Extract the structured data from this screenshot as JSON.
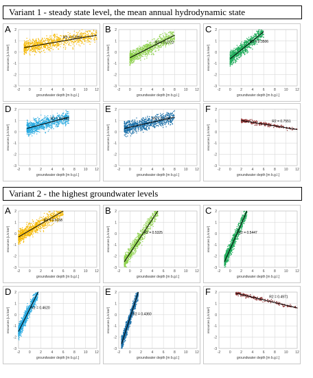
{
  "variants": [
    {
      "title": "Variant 1 - steady state level, the mean annual hydrodynamic state",
      "charts": [
        {
          "letter": "A",
          "r2": "R2 = 0.2352",
          "color": "#f5b800"
        },
        {
          "letter": "B",
          "r2": "R2 = 0.2772",
          "color": "#8fd14f"
        },
        {
          "letter": "C",
          "r2": "R2 = 0.3506",
          "color": "#1fab5a"
        },
        {
          "letter": "D",
          "r2": "R2 = 0.2962",
          "color": "#27a9e0"
        },
        {
          "letter": "E",
          "r2": "R2 = 0.1711",
          "color": "#1a6fa8"
        },
        {
          "letter": "F",
          "r2": "R2 = 0.7551",
          "color": "#8c2d2d"
        }
      ]
    },
    {
      "title": "Variant 2 - the highest groundwater levels",
      "charts": [
        {
          "letter": "A",
          "r2": "R2 = 0.5158",
          "color": "#f5b800"
        },
        {
          "letter": "B",
          "r2": "R2 = 0.5325",
          "color": "#8fd14f"
        },
        {
          "letter": "C",
          "r2": "R2 = 0.5447",
          "color": "#1fab5a"
        },
        {
          "letter": "D",
          "r2": "R2 = 0.4620",
          "color": "#27a9e0"
        },
        {
          "letter": "E",
          "r2": "R2 = 0.4360",
          "color": "#1a6fa8"
        },
        {
          "letter": "F",
          "r2": "R2 = 0.4971",
          "color": "#8c2d2d"
        }
      ]
    }
  ],
  "axes": {
    "xlabel": "groundwater depth [m b.g.l.]",
    "ylabel": "resources [L/s km²]",
    "xticks": [
      "-2",
      "0",
      "2",
      "4",
      "6",
      "8",
      "10",
      "12"
    ],
    "yticks": [
      "2",
      "1",
      "0",
      "-1",
      "-2",
      "-3"
    ]
  },
  "chart_data": [
    {
      "type": "scatter",
      "title": "A",
      "variant": 1,
      "r2": 0.2352,
      "xlim": [
        -2,
        12
      ],
      "ylim": [
        -3,
        2
      ],
      "trendline": {
        "x": [
          -1,
          12
        ],
        "y": [
          0.4,
          1.5
        ]
      }
    },
    {
      "type": "scatter",
      "title": "B",
      "variant": 1,
      "r2": 0.2772,
      "xlim": [
        -2,
        12
      ],
      "ylim": [
        -3,
        2
      ],
      "trendline": {
        "x": [
          0,
          8
        ],
        "y": [
          -0.5,
          1.5
        ]
      }
    },
    {
      "type": "scatter",
      "title": "C",
      "variant": 1,
      "r2": 0.3506,
      "xlim": [
        -2,
        12
      ],
      "ylim": [
        -3,
        2
      ],
      "trendline": {
        "x": [
          0,
          6
        ],
        "y": [
          -0.6,
          1.8
        ]
      }
    },
    {
      "type": "scatter",
      "title": "D",
      "variant": 1,
      "r2": 0.2962,
      "xlim": [
        -2,
        12
      ],
      "ylim": [
        -3,
        2
      ],
      "trendline": {
        "x": [
          -0.5,
          7
        ],
        "y": [
          0.3,
          1.3
        ]
      }
    },
    {
      "type": "scatter",
      "title": "E",
      "variant": 1,
      "r2": 0.1711,
      "xlim": [
        -2,
        12
      ],
      "ylim": [
        -3,
        2
      ],
      "trendline": {
        "x": [
          -1,
          8
        ],
        "y": [
          0.3,
          1.3
        ]
      }
    },
    {
      "type": "scatter",
      "title": "F",
      "variant": 1,
      "r2": 0.7551,
      "xlim": [
        -2,
        12
      ],
      "ylim": [
        -3,
        2
      ],
      "trendline": {
        "x": [
          2,
          12
        ],
        "y": [
          1.0,
          0.2
        ]
      }
    },
    {
      "type": "scatter",
      "title": "A",
      "variant": 2,
      "r2": 0.5158,
      "xlim": [
        -2,
        12
      ],
      "ylim": [
        -3,
        2
      ],
      "trendline": {
        "x": [
          -2,
          6
        ],
        "y": [
          -0.3,
          2.0
        ]
      }
    },
    {
      "type": "scatter",
      "title": "B",
      "variant": 2,
      "r2": 0.5325,
      "xlim": [
        -2,
        12
      ],
      "ylim": [
        -3,
        2
      ],
      "trendline": {
        "x": [
          -1,
          5
        ],
        "y": [
          -2.5,
          2.0
        ]
      }
    },
    {
      "type": "scatter",
      "title": "C",
      "variant": 2,
      "r2": 0.5447,
      "xlim": [
        -2,
        12
      ],
      "ylim": [
        -3,
        2
      ],
      "trendline": {
        "x": [
          -1,
          3
        ],
        "y": [
          -2.5,
          2.0
        ]
      }
    },
    {
      "type": "scatter",
      "title": "D",
      "variant": 2,
      "r2": 0.462,
      "xlim": [
        -2,
        12
      ],
      "ylim": [
        -3,
        2
      ],
      "trendline": {
        "x": [
          -2,
          1.5
        ],
        "y": [
          -1.5,
          2.0
        ]
      }
    },
    {
      "type": "scatter",
      "title": "E",
      "variant": 2,
      "r2": 0.436,
      "xlim": [
        -2,
        12
      ],
      "ylim": [
        -3,
        2
      ],
      "trendline": {
        "x": [
          -1.5,
          1.5
        ],
        "y": [
          -2.6,
          2.0
        ]
      }
    },
    {
      "type": "scatter",
      "title": "F",
      "variant": 2,
      "r2": 0.4971,
      "xlim": [
        -2,
        12
      ],
      "ylim": [
        -3,
        2
      ],
      "trendline": {
        "x": [
          1,
          12
        ],
        "y": [
          1.9,
          0.6
        ]
      }
    }
  ]
}
